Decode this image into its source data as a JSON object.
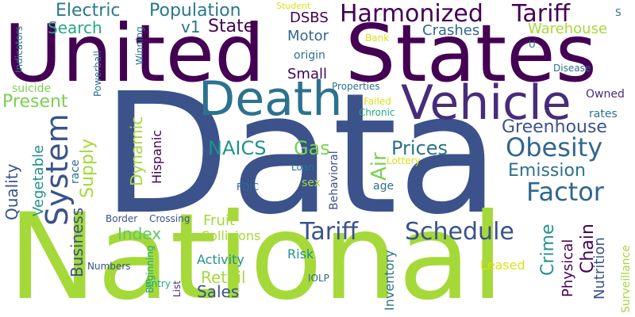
{
  "palette": {
    "purple": "#440154",
    "blue": "#3b528b",
    "teal": "#21918c",
    "green": "#5ec962",
    "lime": "#a5d93a",
    "yellow": "#d7e219"
  },
  "words": [
    {
      "text": "Data",
      "color": "#3b528b"
    },
    {
      "text": "National",
      "color": "#a5d93a"
    },
    {
      "text": "United",
      "color": "#440154"
    },
    {
      "text": "States",
      "color": "#440154"
    },
    {
      "text": "Vehicle",
      "color": "#472c7a"
    },
    {
      "text": "Death",
      "color": "#2c728e"
    },
    {
      "text": "Harmonized",
      "color": "#440154"
    },
    {
      "text": "Tariff",
      "color": "#440154"
    },
    {
      "text": "Electric",
      "color": "#2a788e"
    },
    {
      "text": "Population",
      "color": "#2a788e"
    },
    {
      "text": "Obesity",
      "color": "#31668e"
    },
    {
      "text": "Factor",
      "color": "#31668e"
    },
    {
      "text": "System",
      "color": "#3b528b"
    },
    {
      "text": "Tariff",
      "color": "#3b528b"
    },
    {
      "text": "Schedule",
      "color": "#3b528b"
    },
    {
      "text": "Greenhouse",
      "color": "#3b528b"
    },
    {
      "text": "Emission",
      "color": "#2c728e"
    },
    {
      "text": "Prices",
      "color": "#2c728e"
    },
    {
      "text": "NAICS",
      "color": "#21918c"
    },
    {
      "text": "Gas",
      "color": "#7ad151"
    },
    {
      "text": "Air",
      "color": "#7ad151"
    },
    {
      "text": "Present",
      "color": "#7ad151"
    },
    {
      "text": "Search",
      "color": "#22a884"
    },
    {
      "text": "v1",
      "color": "#2c728e"
    },
    {
      "text": "State",
      "color": "#440154"
    },
    {
      "text": "Motor",
      "color": "#31668e"
    },
    {
      "text": "Crashes",
      "color": "#31668e"
    },
    {
      "text": "DSBS",
      "color": "#440154"
    },
    {
      "text": "Warehouse",
      "color": "#a5d93a"
    },
    {
      "text": "Small",
      "color": "#440154"
    },
    {
      "text": "origin",
      "color": "#2c728e"
    },
    {
      "text": "Owned",
      "color": "#472c7a"
    },
    {
      "text": "rates",
      "color": "#2c728e"
    },
    {
      "text": "Quality",
      "color": "#3b528b"
    },
    {
      "text": "Vegetable",
      "color": "#21918c"
    },
    {
      "text": "Supply",
      "color": "#a5d93a"
    },
    {
      "text": "Dynamic",
      "color": "#a5d93a"
    },
    {
      "text": "Hispanic",
      "color": "#440154"
    },
    {
      "text": "race",
      "color": "#2c728e"
    },
    {
      "text": "Index",
      "color": "#5ec962"
    },
    {
      "text": "Fruit",
      "color": "#a5d93a"
    },
    {
      "text": "Collisions",
      "color": "#a5d93a"
    },
    {
      "text": "Business",
      "color": "#3b528b"
    },
    {
      "text": "Activity",
      "color": "#21918c"
    },
    {
      "text": "Retail",
      "color": "#a5d93a"
    },
    {
      "text": "Sales",
      "color": "#3b528b"
    },
    {
      "text": "Risk",
      "color": "#21918c"
    },
    {
      "text": "Crime",
      "color": "#21918c"
    },
    {
      "text": "Chain",
      "color": "#440154"
    },
    {
      "text": "Nutrition",
      "color": "#3b528b"
    },
    {
      "text": "Physical",
      "color": "#440154"
    },
    {
      "text": "Surveillance",
      "color": "#a5d93a"
    },
    {
      "text": "Inventory",
      "color": "#2c728e"
    },
    {
      "text": "Leased",
      "color": "#d7e219"
    },
    {
      "text": "Behavioral",
      "color": "#3b528b"
    },
    {
      "text": "Loan",
      "color": "#2c728e"
    },
    {
      "text": "sex",
      "color": "#a5d93a"
    },
    {
      "text": "age",
      "color": "#2c728e"
    },
    {
      "text": "FDIC",
      "color": "#31668e"
    },
    {
      "text": "Lottery",
      "color": "#d7e219"
    },
    {
      "text": "Chronic",
      "color": "#22a884"
    },
    {
      "text": "Failed",
      "color": "#d7e219"
    },
    {
      "text": "Properties",
      "color": "#2c728e"
    },
    {
      "text": "Disease",
      "color": "#2c728e"
    },
    {
      "text": "Bank",
      "color": "#d7e219"
    },
    {
      "text": "U",
      "color": "#2c728e"
    },
    {
      "text": "S",
      "color": "#2c728e"
    },
    {
      "text": "Student",
      "color": "#d7e219"
    },
    {
      "text": "Winning",
      "color": "#2c728e"
    },
    {
      "text": "Numbers",
      "color": "#3b528b"
    },
    {
      "text": "Powerball",
      "color": "#2c728e"
    },
    {
      "text": "Indicators",
      "color": "#2c728e"
    },
    {
      "text": "suicide",
      "color": "#7ad151"
    },
    {
      "text": "Border",
      "color": "#3b528b"
    },
    {
      "text": "Crossing",
      "color": "#3b528b"
    },
    {
      "text": "Entry",
      "color": "#22a884"
    },
    {
      "text": "Beginning",
      "color": "#22a884"
    },
    {
      "text": "List",
      "color": "#472c7a"
    },
    {
      "text": "IOLP",
      "color": "#31668e"
    }
  ]
}
